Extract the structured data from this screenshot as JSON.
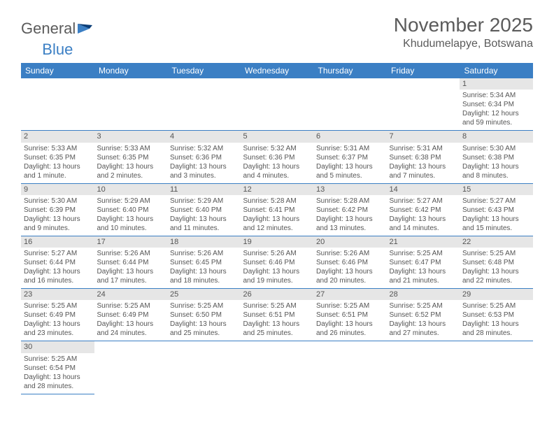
{
  "logo": {
    "text_main": "General",
    "text_accent": "Blue"
  },
  "title": "November 2025",
  "location": "Khudumelapye, Botswana",
  "colors": {
    "header_bg": "#3b7fc4",
    "header_text": "#ffffff",
    "daynum_bg": "#e6e6e6",
    "text": "#555555",
    "rule": "#3b7fc4"
  },
  "fonts": {
    "title_size": 28,
    "location_size": 16,
    "dow_size": 12,
    "cell_size": 10
  },
  "calendar": {
    "columns": [
      "Sunday",
      "Monday",
      "Tuesday",
      "Wednesday",
      "Thursday",
      "Friday",
      "Saturday"
    ],
    "first_weekday": 6,
    "num_days": 30,
    "days": {
      "1": {
        "sunrise": "5:34 AM",
        "sunset": "6:34 PM",
        "daylight": "12 hours and 59 minutes."
      },
      "2": {
        "sunrise": "5:33 AM",
        "sunset": "6:35 PM",
        "daylight": "13 hours and 1 minute."
      },
      "3": {
        "sunrise": "5:33 AM",
        "sunset": "6:35 PM",
        "daylight": "13 hours and 2 minutes."
      },
      "4": {
        "sunrise": "5:32 AM",
        "sunset": "6:36 PM",
        "daylight": "13 hours and 3 minutes."
      },
      "5": {
        "sunrise": "5:32 AM",
        "sunset": "6:36 PM",
        "daylight": "13 hours and 4 minutes."
      },
      "6": {
        "sunrise": "5:31 AM",
        "sunset": "6:37 PM",
        "daylight": "13 hours and 5 minutes."
      },
      "7": {
        "sunrise": "5:31 AM",
        "sunset": "6:38 PM",
        "daylight": "13 hours and 7 minutes."
      },
      "8": {
        "sunrise": "5:30 AM",
        "sunset": "6:38 PM",
        "daylight": "13 hours and 8 minutes."
      },
      "9": {
        "sunrise": "5:30 AM",
        "sunset": "6:39 PM",
        "daylight": "13 hours and 9 minutes."
      },
      "10": {
        "sunrise": "5:29 AM",
        "sunset": "6:40 PM",
        "daylight": "13 hours and 10 minutes."
      },
      "11": {
        "sunrise": "5:29 AM",
        "sunset": "6:40 PM",
        "daylight": "13 hours and 11 minutes."
      },
      "12": {
        "sunrise": "5:28 AM",
        "sunset": "6:41 PM",
        "daylight": "13 hours and 12 minutes."
      },
      "13": {
        "sunrise": "5:28 AM",
        "sunset": "6:42 PM",
        "daylight": "13 hours and 13 minutes."
      },
      "14": {
        "sunrise": "5:27 AM",
        "sunset": "6:42 PM",
        "daylight": "13 hours and 14 minutes."
      },
      "15": {
        "sunrise": "5:27 AM",
        "sunset": "6:43 PM",
        "daylight": "13 hours and 15 minutes."
      },
      "16": {
        "sunrise": "5:27 AM",
        "sunset": "6:44 PM",
        "daylight": "13 hours and 16 minutes."
      },
      "17": {
        "sunrise": "5:26 AM",
        "sunset": "6:44 PM",
        "daylight": "13 hours and 17 minutes."
      },
      "18": {
        "sunrise": "5:26 AM",
        "sunset": "6:45 PM",
        "daylight": "13 hours and 18 minutes."
      },
      "19": {
        "sunrise": "5:26 AM",
        "sunset": "6:46 PM",
        "daylight": "13 hours and 19 minutes."
      },
      "20": {
        "sunrise": "5:26 AM",
        "sunset": "6:46 PM",
        "daylight": "13 hours and 20 minutes."
      },
      "21": {
        "sunrise": "5:25 AM",
        "sunset": "6:47 PM",
        "daylight": "13 hours and 21 minutes."
      },
      "22": {
        "sunrise": "5:25 AM",
        "sunset": "6:48 PM",
        "daylight": "13 hours and 22 minutes."
      },
      "23": {
        "sunrise": "5:25 AM",
        "sunset": "6:49 PM",
        "daylight": "13 hours and 23 minutes."
      },
      "24": {
        "sunrise": "5:25 AM",
        "sunset": "6:49 PM",
        "daylight": "13 hours and 24 minutes."
      },
      "25": {
        "sunrise": "5:25 AM",
        "sunset": "6:50 PM",
        "daylight": "13 hours and 25 minutes."
      },
      "26": {
        "sunrise": "5:25 AM",
        "sunset": "6:51 PM",
        "daylight": "13 hours and 25 minutes."
      },
      "27": {
        "sunrise": "5:25 AM",
        "sunset": "6:51 PM",
        "daylight": "13 hours and 26 minutes."
      },
      "28": {
        "sunrise": "5:25 AM",
        "sunset": "6:52 PM",
        "daylight": "13 hours and 27 minutes."
      },
      "29": {
        "sunrise": "5:25 AM",
        "sunset": "6:53 PM",
        "daylight": "13 hours and 28 minutes."
      },
      "30": {
        "sunrise": "5:25 AM",
        "sunset": "6:54 PM",
        "daylight": "13 hours and 28 minutes."
      }
    },
    "labels": {
      "sunrise": "Sunrise:",
      "sunset": "Sunset:",
      "daylight": "Daylight:"
    }
  }
}
